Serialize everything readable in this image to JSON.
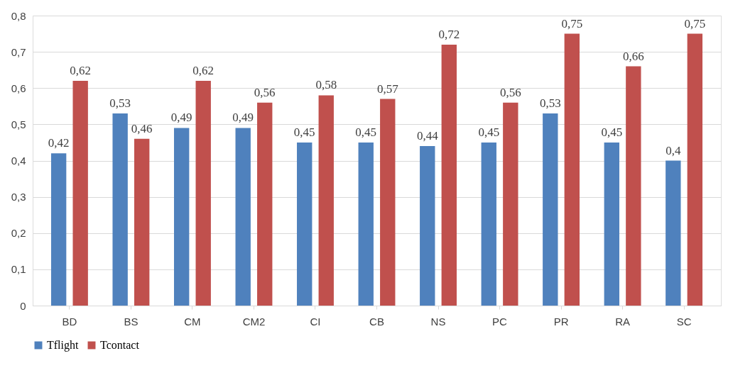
{
  "chart_data": {
    "type": "bar",
    "categories": [
      "BD",
      "BS",
      "CM",
      "CM2",
      "CI",
      "CB",
      "NS",
      "PC",
      "PR",
      "RA",
      "SC"
    ],
    "series": [
      {
        "name": "Tflight",
        "color": "#4f81bd",
        "values": [
          0.42,
          0.53,
          0.49,
          0.49,
          0.45,
          0.45,
          0.44,
          0.45,
          0.53,
          0.45,
          0.4
        ],
        "value_labels": [
          "0,42",
          "0,53",
          "0,49",
          "0,49",
          "0,45",
          "0,45",
          "0,44",
          "0,45",
          "0,53",
          "0,45",
          "0,4"
        ]
      },
      {
        "name": "Tcontact",
        "color": "#c0504d",
        "values": [
          0.62,
          0.46,
          0.62,
          0.56,
          0.58,
          0.57,
          0.72,
          0.56,
          0.75,
          0.66,
          0.75
        ],
        "value_labels": [
          "0,62",
          "0,46",
          "0,62",
          "0,56",
          "0,58",
          "0,57",
          "0,72",
          "0,56",
          "0,75",
          "0,66",
          "0,75"
        ]
      }
    ],
    "ylim": [
      0,
      0.8
    ],
    "yticks": [
      0,
      {
        "value": 0.1,
        "label": "0,1"
      },
      {
        "value": 0.2,
        "label": "0,2"
      },
      {
        "value": 0.3,
        "label": "0,3"
      },
      {
        "value": 0.4,
        "label": "0,4"
      },
      {
        "value": 0.5,
        "label": "0,5"
      },
      {
        "value": 0.6,
        "label": "0,6"
      },
      {
        "value": 0.7,
        "label": "0,7"
      },
      {
        "value": 0.8,
        "label": "0,8"
      }
    ],
    "grid": "y",
    "legend": "bottom"
  }
}
